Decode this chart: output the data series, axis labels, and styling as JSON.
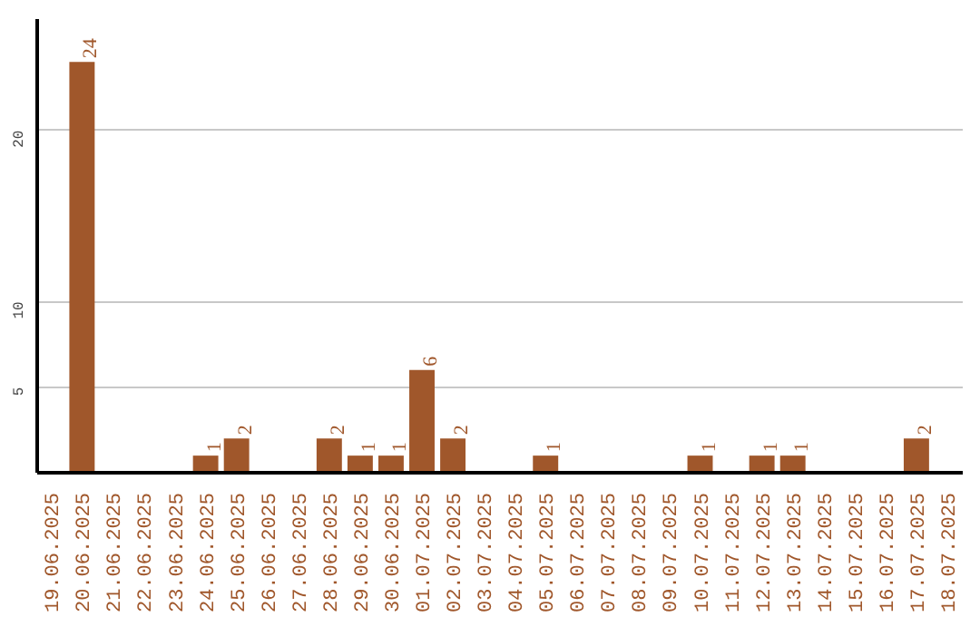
{
  "chart_data": {
    "type": "bar",
    "categories": [
      "19.06.2025",
      "20.06.2025",
      "21.06.2025",
      "22.06.2025",
      "23.06.2025",
      "24.06.2025",
      "25.06.2025",
      "26.06.2025",
      "27.06.2025",
      "28.06.2025",
      "29.06.2025",
      "30.06.2025",
      "01.07.2025",
      "02.07.2025",
      "03.07.2025",
      "04.07.2025",
      "05.07.2025",
      "06.07.2025",
      "07.07.2025",
      "08.07.2025",
      "09.07.2025",
      "10.07.2025",
      "11.07.2025",
      "12.07.2025",
      "13.07.2025",
      "14.07.2025",
      "15.07.2025",
      "16.07.2025",
      "17.07.2025",
      "18.07.2025"
    ],
    "values": [
      0,
      24,
      0,
      0,
      0,
      1,
      2,
      0,
      0,
      2,
      1,
      1,
      6,
      2,
      0,
      0,
      1,
      0,
      0,
      0,
      0,
      1,
      0,
      1,
      1,
      0,
      0,
      0,
      2,
      0
    ],
    "value_labels": [
      null,
      "24",
      null,
      null,
      null,
      "1",
      "2",
      null,
      null,
      "2",
      "1",
      "1",
      "6",
      "2",
      null,
      null,
      "1",
      null,
      null,
      null,
      null,
      "1",
      null,
      "1",
      "1",
      null,
      null,
      null,
      "2",
      null
    ],
    "color": "#a0572b",
    "ylim": [
      0,
      26.5
    ],
    "yticks": [
      5,
      10,
      20
    ],
    "grid": "y"
  }
}
